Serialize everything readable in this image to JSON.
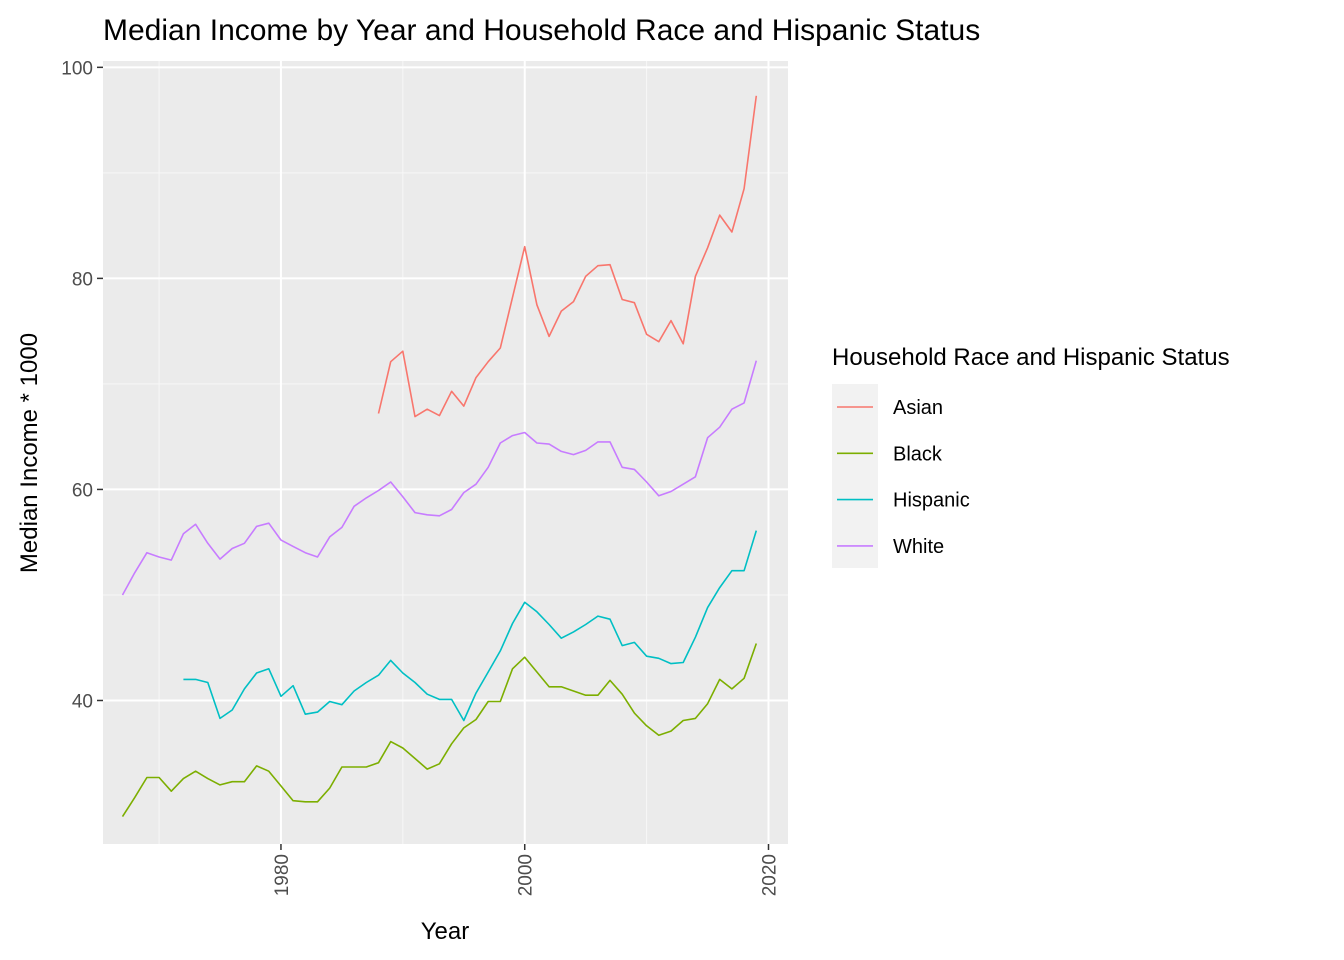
{
  "chart_data": {
    "type": "line",
    "title": "Median Income by Year and Household Race and Hispanic Status",
    "xlabel": "Year",
    "ylabel": "Median Income * 1000",
    "xlim": [
      1965.4,
      2021.6
    ],
    "ylim": [
      26.4,
      100.6
    ],
    "x_ticks": [
      1980,
      2000,
      2020
    ],
    "y_ticks": [
      40,
      60,
      80,
      100
    ],
    "x_minor_ticks": [
      1970,
      1990,
      2010
    ],
    "y_minor_ticks": [
      50,
      70,
      90
    ],
    "grid": true,
    "legend": {
      "title": "Household Race and Hispanic Status",
      "position": "right"
    },
    "series": [
      {
        "name": "Asian",
        "color": "#F8766D",
        "x": [
          1988,
          1989,
          1990,
          1991,
          1992,
          1993,
          1994,
          1995,
          1996,
          1997,
          1998,
          1999,
          2000,
          2001,
          2002,
          2003,
          2004,
          2005,
          2006,
          2007,
          2008,
          2009,
          2010,
          2011,
          2012,
          2013,
          2014,
          2015,
          2016,
          2017,
          2018,
          2019
        ],
        "y": [
          67.2,
          72.1,
          73.1,
          66.9,
          67.6,
          67.0,
          69.3,
          67.9,
          70.6,
          72.1,
          73.4,
          78.2,
          83.0,
          77.5,
          74.5,
          76.9,
          77.8,
          80.2,
          81.2,
          81.3,
          78.0,
          77.7,
          74.7,
          74.0,
          76.0,
          73.8,
          80.2,
          82.9,
          86.0,
          84.4,
          88.5,
          97.3
        ]
      },
      {
        "name": "Black",
        "color": "#7CAE00",
        "x": [
          1967,
          1968,
          1969,
          1970,
          1971,
          1972,
          1973,
          1974,
          1975,
          1976,
          1977,
          1978,
          1979,
          1980,
          1981,
          1982,
          1983,
          1984,
          1985,
          1986,
          1987,
          1988,
          1989,
          1990,
          1991,
          1992,
          1993,
          1994,
          1995,
          1996,
          1997,
          1998,
          1999,
          2000,
          2001,
          2002,
          2003,
          2004,
          2005,
          2006,
          2007,
          2008,
          2009,
          2010,
          2011,
          2012,
          2013,
          2014,
          2015,
          2016,
          2017,
          2018,
          2019
        ],
        "y": [
          29.0,
          30.8,
          32.7,
          32.7,
          31.4,
          32.6,
          33.3,
          32.6,
          32.0,
          32.3,
          32.3,
          33.8,
          33.3,
          31.9,
          30.5,
          30.4,
          30.4,
          31.7,
          33.7,
          33.7,
          33.7,
          34.1,
          36.1,
          35.5,
          34.5,
          33.5,
          34.0,
          35.9,
          37.4,
          38.2,
          39.9,
          39.9,
          43.0,
          44.1,
          42.7,
          41.3,
          41.3,
          40.9,
          40.5,
          40.5,
          41.9,
          40.6,
          38.8,
          37.6,
          36.7,
          37.1,
          38.1,
          38.3,
          39.7,
          42.0,
          41.1,
          42.1,
          45.4
        ]
      },
      {
        "name": "Hispanic",
        "color": "#00BFC4",
        "x": [
          1972,
          1973,
          1974,
          1975,
          1976,
          1977,
          1978,
          1979,
          1980,
          1981,
          1982,
          1983,
          1984,
          1985,
          1986,
          1987,
          1988,
          1989,
          1990,
          1991,
          1992,
          1993,
          1994,
          1995,
          1996,
          1997,
          1998,
          1999,
          2000,
          2001,
          2002,
          2003,
          2004,
          2005,
          2006,
          2007,
          2008,
          2009,
          2010,
          2011,
          2012,
          2013,
          2014,
          2015,
          2016,
          2017,
          2018,
          2019
        ],
        "y": [
          42.0,
          42.0,
          41.7,
          38.3,
          39.1,
          41.1,
          42.6,
          43.0,
          40.4,
          41.4,
          38.7,
          38.9,
          39.9,
          39.6,
          40.9,
          41.7,
          42.4,
          43.8,
          42.6,
          41.7,
          40.6,
          40.1,
          40.1,
          38.1,
          40.7,
          42.7,
          44.7,
          47.3,
          49.3,
          48.4,
          47.2,
          45.9,
          46.5,
          47.2,
          48.0,
          47.7,
          45.2,
          45.5,
          44.2,
          44.0,
          43.5,
          43.6,
          46.0,
          48.8,
          50.7,
          52.3,
          52.3,
          56.1
        ]
      },
      {
        "name": "White",
        "color": "#C77CFF",
        "x": [
          1967,
          1968,
          1969,
          1970,
          1971,
          1972,
          1973,
          1974,
          1975,
          1976,
          1977,
          1978,
          1979,
          1980,
          1981,
          1982,
          1983,
          1984,
          1985,
          1986,
          1987,
          1988,
          1989,
          1990,
          1991,
          1992,
          1993,
          1994,
          1995,
          1996,
          1997,
          1998,
          1999,
          2000,
          2001,
          2002,
          2003,
          2004,
          2005,
          2006,
          2007,
          2008,
          2009,
          2010,
          2011,
          2012,
          2013,
          2014,
          2015,
          2016,
          2017,
          2018,
          2019
        ],
        "y": [
          50.0,
          52.1,
          54.0,
          53.6,
          53.3,
          55.8,
          56.7,
          54.9,
          53.4,
          54.4,
          54.9,
          56.5,
          56.8,
          55.2,
          54.6,
          54.0,
          53.6,
          55.5,
          56.4,
          58.4,
          59.2,
          59.9,
          60.7,
          59.3,
          57.8,
          57.6,
          57.5,
          58.1,
          59.7,
          60.5,
          62.1,
          64.4,
          65.1,
          65.4,
          64.4,
          64.3,
          63.6,
          63.3,
          63.7,
          64.5,
          64.5,
          62.1,
          61.9,
          60.7,
          59.4,
          59.8,
          60.5,
          61.2,
          64.9,
          65.9,
          67.6,
          68.2,
          72.2
        ]
      }
    ]
  }
}
